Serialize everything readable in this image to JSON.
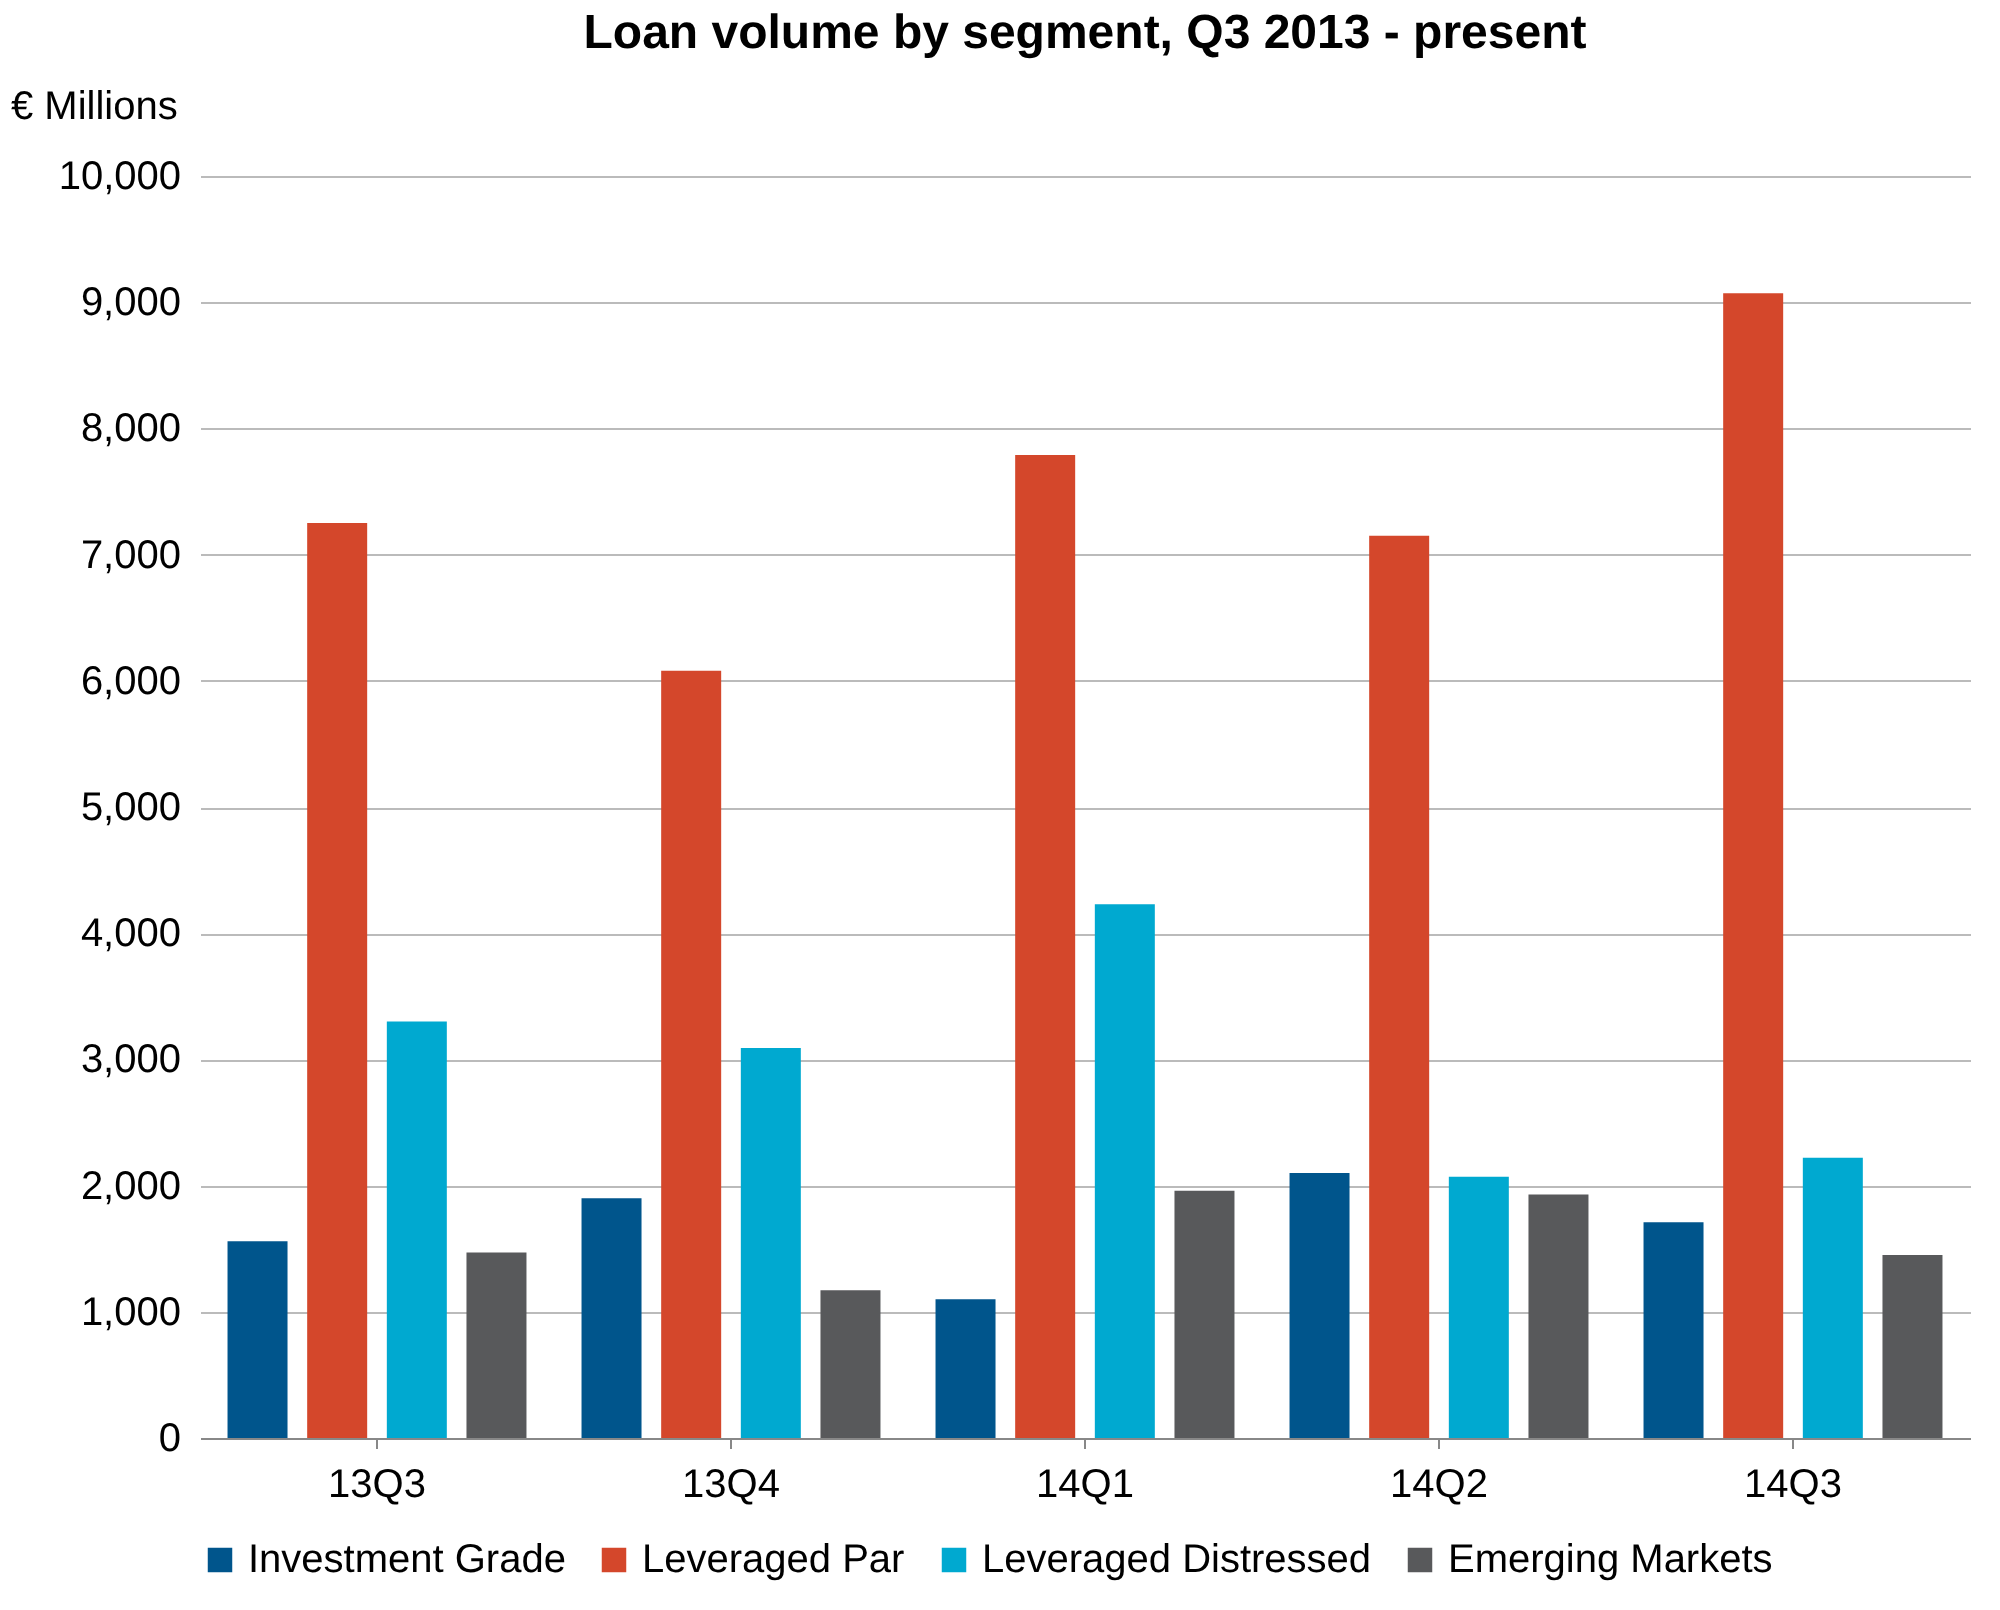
{
  "chart_data": {
    "type": "bar",
    "title": "Loan volume by segment, Q3 2013 - present",
    "ylabel": "€ Millions",
    "categories": [
      "13Q3",
      "13Q4",
      "14Q1",
      "14Q2",
      "14Q3"
    ],
    "series": [
      {
        "name": "Investment Grade",
        "color": "#00558c",
        "values": [
          1560,
          1900,
          1100,
          2100,
          1710
        ]
      },
      {
        "name": "Leveraged Par",
        "color": "#d4472b",
        "values": [
          7250,
          6080,
          7790,
          7150,
          9070
        ]
      },
      {
        "name": "Leveraged Distressed",
        "color": "#00a9d0",
        "values": [
          3300,
          3090,
          4230,
          2070,
          2220
        ]
      },
      {
        "name": "Emerging Markets",
        "color": "#58595b",
        "values": [
          1470,
          1170,
          1960,
          1930,
          1450
        ]
      }
    ],
    "ylim": [
      0,
      10000
    ],
    "yticks": [
      0,
      {
        "value": 1000,
        "label": "1,000"
      },
      {
        "value": 2000,
        "label": "2,000"
      },
      {
        "value": 3000,
        "label": "3,000"
      },
      {
        "value": 4000,
        "label": "4,000"
      },
      {
        "value": 5000,
        "label": "5,000"
      },
      {
        "value": 6000,
        "label": "6,000"
      },
      {
        "value": 7000,
        "label": "7,000"
      },
      {
        "value": 8000,
        "label": "8,000"
      },
      {
        "value": 9000,
        "label": "9,000"
      },
      {
        "value": 10000,
        "label": "10,000"
      }
    ],
    "grid": "y",
    "legend": "bottom"
  }
}
